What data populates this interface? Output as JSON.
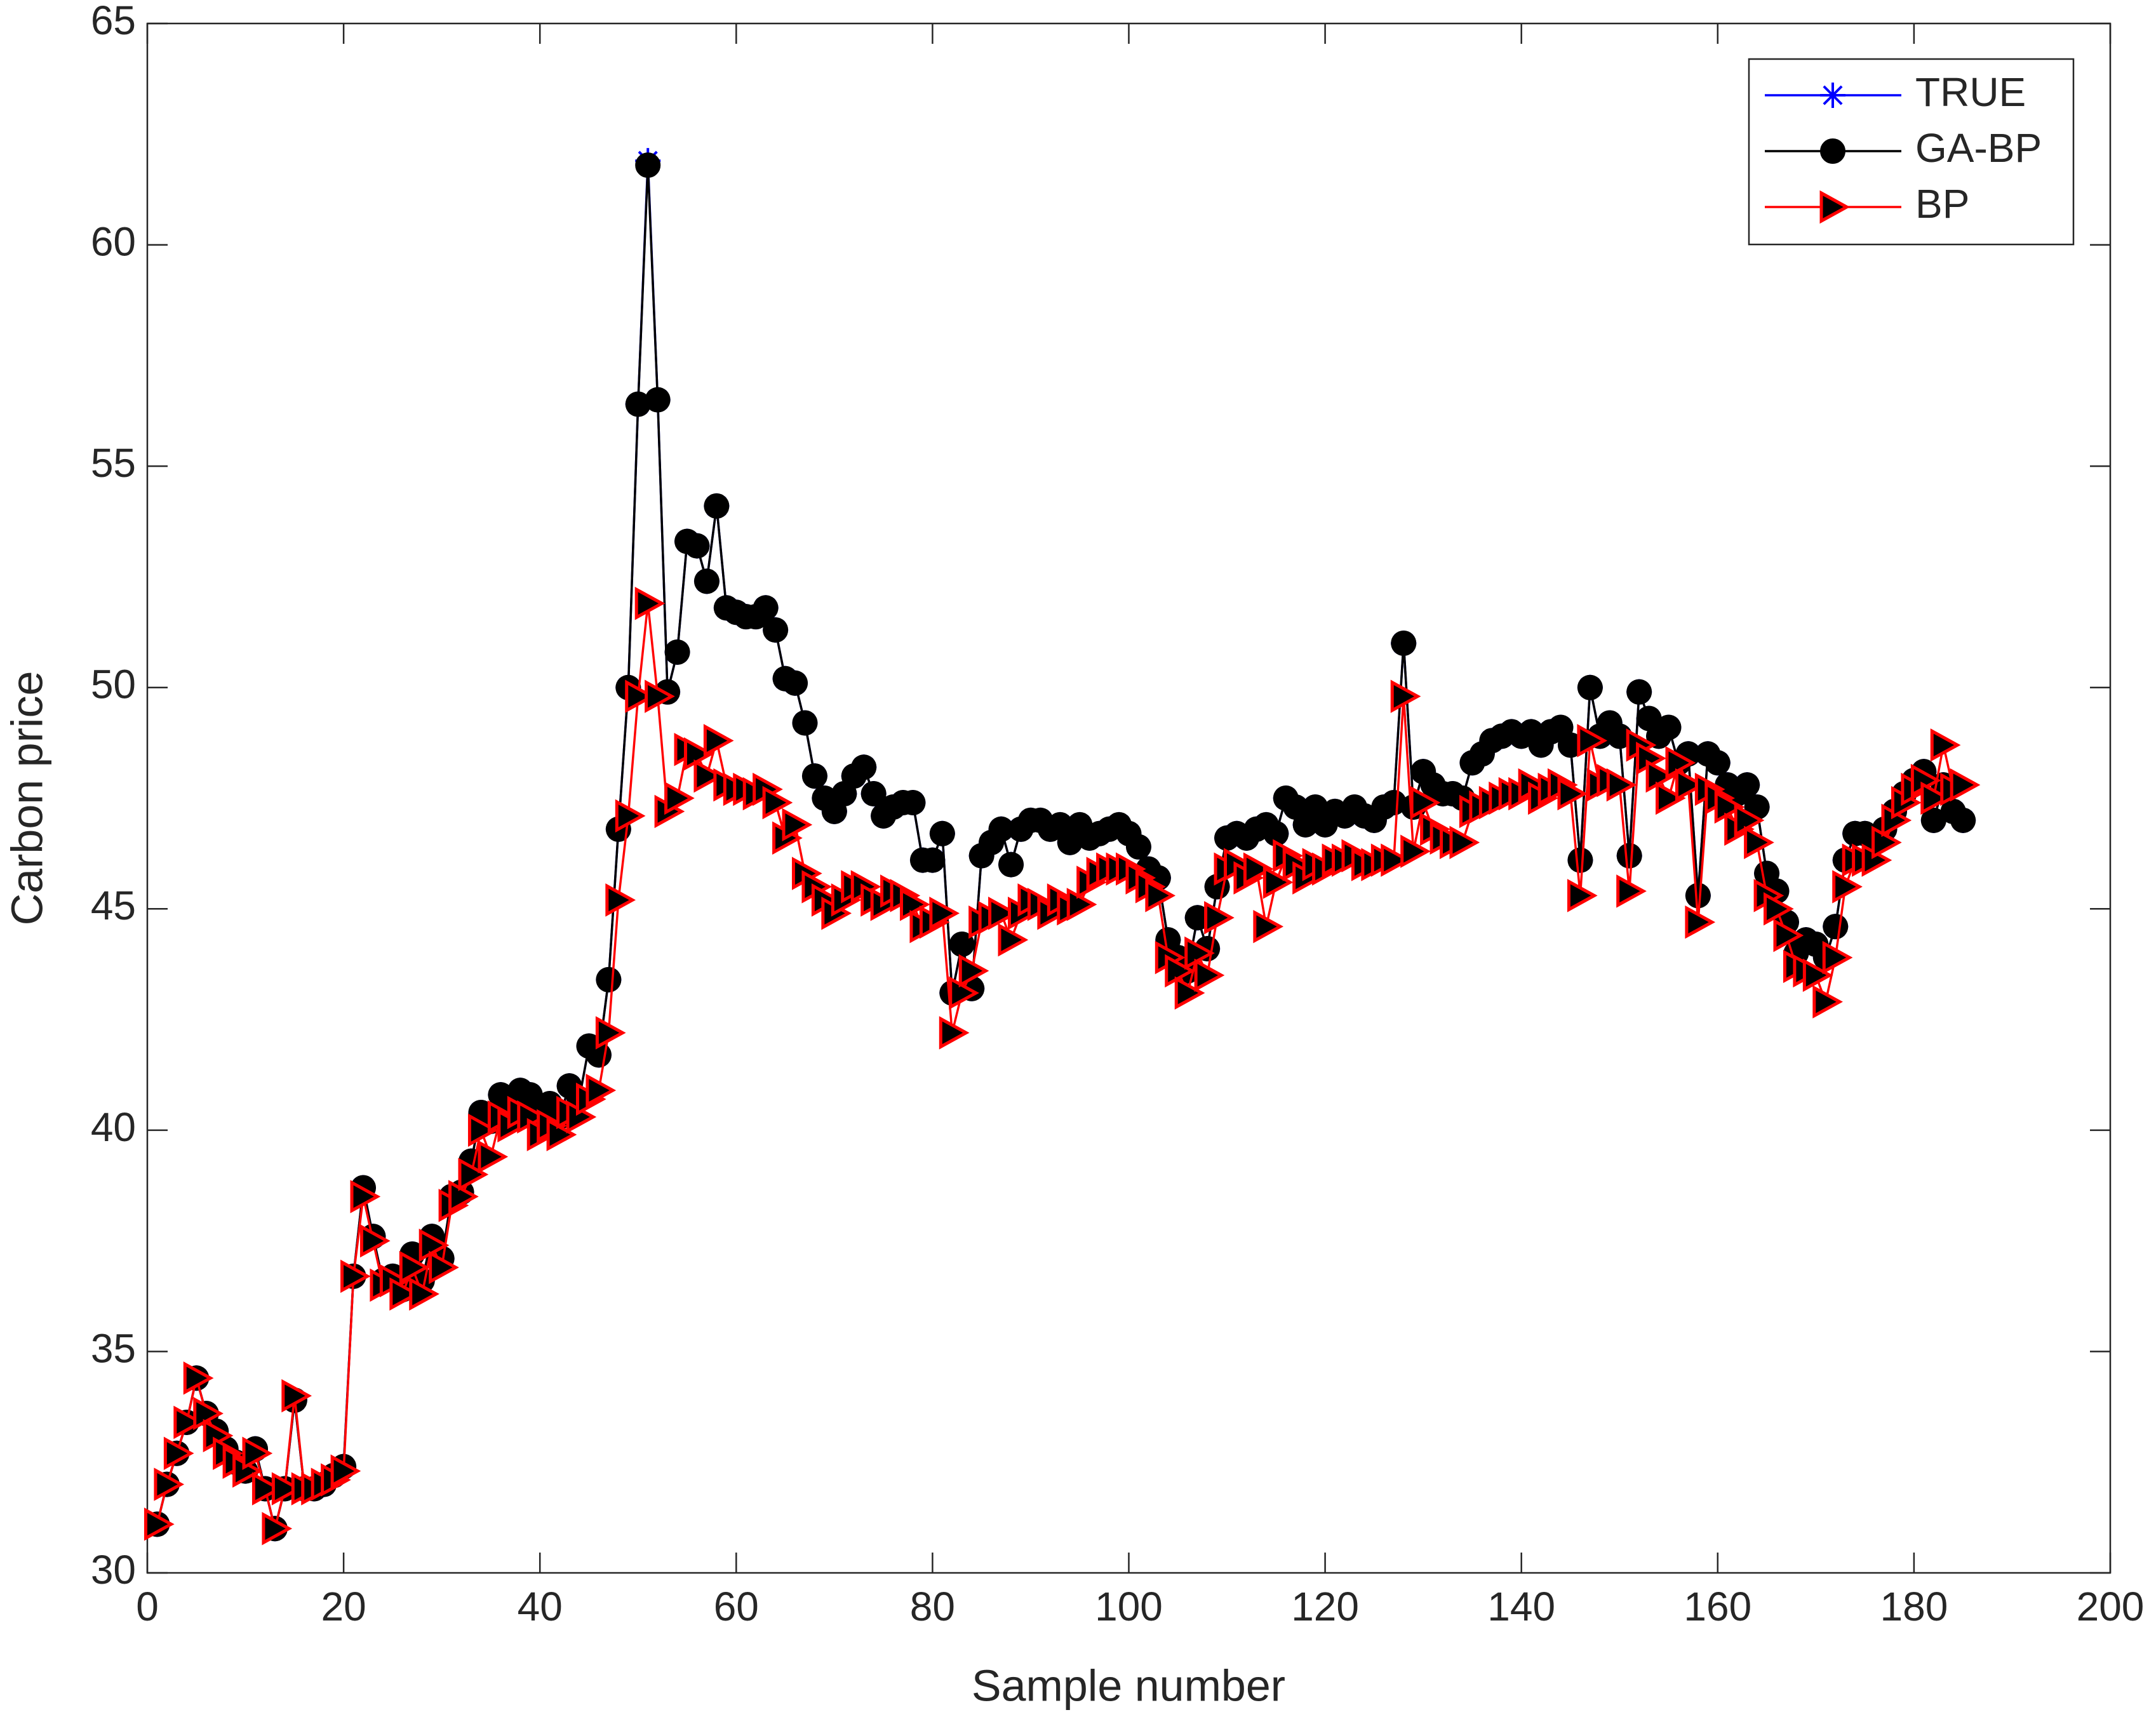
{
  "chart_data": {
    "type": "line",
    "xlabel": "Sample number",
    "ylabel": "Carbon price",
    "xlim": [
      0,
      200
    ],
    "xticks": [
      0,
      20,
      40,
      60,
      80,
      100,
      120,
      140,
      160,
      180,
      200
    ],
    "ylim": [
      30,
      65
    ],
    "yticks": [
      30,
      35,
      40,
      45,
      50,
      55,
      60,
      65
    ],
    "legend": "northeast",
    "x": [
      1,
      2,
      3,
      4,
      5,
      6,
      7,
      8,
      9,
      10,
      11,
      12,
      13,
      14,
      15,
      16,
      17,
      18,
      19,
      20,
      21,
      22,
      23,
      24,
      25,
      26,
      27,
      28,
      29,
      30,
      31,
      32,
      33,
      34,
      35,
      36,
      37,
      38,
      39,
      40,
      41,
      42,
      43,
      44,
      45,
      46,
      47,
      48,
      49,
      50,
      51,
      52,
      53,
      54,
      55,
      56,
      57,
      58,
      59,
      60,
      61,
      62,
      63,
      64,
      65,
      66,
      67,
      68,
      69,
      70,
      71,
      72,
      73,
      74,
      75,
      76,
      77,
      78,
      79,
      80,
      81,
      82,
      83,
      84,
      85,
      86,
      87,
      88,
      89,
      90,
      91,
      92,
      93,
      94,
      95,
      96,
      97,
      98,
      99,
      100,
      101,
      102,
      103,
      104,
      105,
      106,
      107,
      108,
      109,
      110,
      111,
      112,
      113,
      114,
      115,
      116,
      117,
      118,
      119,
      120,
      121,
      122,
      123,
      124,
      125,
      126,
      127,
      128,
      129,
      130,
      131,
      132,
      133,
      134,
      135,
      136,
      137,
      138,
      139,
      140,
      141,
      142,
      143,
      144,
      145,
      146,
      147,
      148,
      149,
      150,
      151,
      152,
      153,
      154,
      155,
      156,
      157,
      158,
      159,
      160,
      161,
      162,
      163,
      164,
      165,
      166,
      167,
      168,
      169,
      170,
      171,
      172,
      173,
      174,
      175,
      176,
      177,
      178,
      179,
      180,
      181,
      182,
      183,
      184,
      185
    ],
    "series": [
      {
        "name": "TRUE",
        "color": "#0000ff",
        "marker": "asterisk",
        "values": [
          31.1,
          32.0,
          32.7,
          33.4,
          34.4,
          33.6,
          33.2,
          32.8,
          32.5,
          32.3,
          32.8,
          31.9,
          31.0,
          31.9,
          33.9,
          31.9,
          31.9,
          32.0,
          32.2,
          32.4,
          36.7,
          38.7,
          37.6,
          36.6,
          36.7,
          36.4,
          37.2,
          36.6,
          37.6,
          37.1,
          38.5,
          38.6,
          39.3,
          40.4,
          40.2,
          40.8,
          40.6,
          40.9,
          40.8,
          40.4,
          40.6,
          40.3,
          41.0,
          40.7,
          41.9,
          41.7,
          43.4,
          46.8,
          50.0,
          56.4,
          61.9,
          56.5,
          49.9,
          50.8,
          53.3,
          53.2,
          52.4,
          54.1,
          51.8,
          51.7,
          51.6,
          51.6,
          51.8,
          51.3,
          50.2,
          50.1,
          49.2,
          48.0,
          47.5,
          47.2,
          47.6,
          48.0,
          48.2,
          47.6,
          47.1,
          47.3,
          47.4,
          47.4,
          46.1,
          46.1,
          46.7,
          43.1,
          44.2,
          43.2,
          46.2,
          46.5,
          46.8,
          46.0,
          46.8,
          47.0,
          47.0,
          46.8,
          46.9,
          46.5,
          46.9,
          46.6,
          46.7,
          46.8,
          46.9,
          46.7,
          46.4,
          45.9,
          45.7,
          44.3,
          43.9,
          43.6,
          44.8,
          44.1,
          45.5,
          46.6,
          46.7,
          46.6,
          46.8,
          46.9,
          46.7,
          47.5,
          47.3,
          46.9,
          47.3,
          46.9,
          47.2,
          47.1,
          47.3,
          47.1,
          47.0,
          47.3,
          47.4,
          51.0,
          47.3,
          48.1,
          47.8,
          47.6,
          47.6,
          47.5,
          48.3,
          48.5,
          48.8,
          48.9,
          49.0,
          48.9,
          49.0,
          48.7,
          49.0,
          49.1,
          48.7,
          46.1,
          50.0,
          48.9,
          49.2,
          48.9,
          46.2,
          49.9,
          49.3,
          48.9,
          49.1,
          48.3,
          48.5,
          45.3,
          48.5,
          48.3,
          47.8,
          47.6,
          47.8,
          47.3,
          45.8,
          45.4,
          44.7,
          44.0,
          44.3,
          44.2,
          43.9,
          44.6,
          46.1,
          46.7,
          46.7,
          46.5,
          46.8,
          47.2,
          47.6,
          47.9,
          48.1,
          47.0,
          47.8,
          47.2,
          47.0
        ]
      },
      {
        "name": "GA-BP",
        "color": "#000000",
        "marker": "circle",
        "values": [
          31.1,
          32.0,
          32.7,
          33.4,
          34.4,
          33.6,
          33.2,
          32.8,
          32.5,
          32.3,
          32.8,
          31.9,
          31.0,
          31.9,
          33.9,
          31.9,
          31.9,
          32.0,
          32.2,
          32.4,
          36.7,
          38.7,
          37.6,
          36.6,
          36.7,
          36.4,
          37.2,
          36.6,
          37.6,
          37.1,
          38.5,
          38.6,
          39.3,
          40.4,
          40.2,
          40.8,
          40.6,
          40.9,
          40.8,
          40.4,
          40.6,
          40.3,
          41.0,
          40.7,
          41.9,
          41.7,
          43.4,
          46.8,
          50.0,
          56.4,
          61.8,
          56.5,
          49.9,
          50.8,
          53.3,
          53.2,
          52.4,
          54.1,
          51.8,
          51.7,
          51.6,
          51.6,
          51.8,
          51.3,
          50.2,
          50.1,
          49.2,
          48.0,
          47.5,
          47.2,
          47.6,
          48.0,
          48.2,
          47.6,
          47.1,
          47.3,
          47.4,
          47.4,
          46.1,
          46.1,
          46.7,
          43.1,
          44.2,
          43.2,
          46.2,
          46.5,
          46.8,
          46.0,
          46.8,
          47.0,
          47.0,
          46.8,
          46.9,
          46.5,
          46.9,
          46.6,
          46.7,
          46.8,
          46.9,
          46.7,
          46.4,
          45.9,
          45.7,
          44.3,
          43.9,
          43.6,
          44.8,
          44.1,
          45.5,
          46.6,
          46.7,
          46.6,
          46.8,
          46.9,
          46.7,
          47.5,
          47.3,
          46.9,
          47.3,
          46.9,
          47.2,
          47.1,
          47.3,
          47.1,
          47.0,
          47.3,
          47.4,
          51.0,
          47.3,
          48.1,
          47.8,
          47.6,
          47.6,
          47.5,
          48.3,
          48.5,
          48.8,
          48.9,
          49.0,
          48.9,
          49.0,
          48.7,
          49.0,
          49.1,
          48.7,
          46.1,
          50.0,
          48.9,
          49.2,
          48.9,
          46.2,
          49.9,
          49.3,
          48.9,
          49.1,
          48.3,
          48.5,
          45.3,
          48.5,
          48.3,
          47.8,
          47.6,
          47.8,
          47.3,
          45.8,
          45.4,
          44.7,
          44.0,
          44.3,
          44.2,
          43.9,
          44.6,
          46.1,
          46.7,
          46.7,
          46.5,
          46.8,
          47.2,
          47.6,
          47.9,
          48.1,
          47.0,
          47.8,
          47.2,
          47.0
        ]
      },
      {
        "name": "BP",
        "color": "#ff0000",
        "marker": "triangle-right",
        "values": [
          31.1,
          32.0,
          32.7,
          33.4,
          34.4,
          33.6,
          33.1,
          32.7,
          32.5,
          32.3,
          32.7,
          31.9,
          31.0,
          31.9,
          34.0,
          31.9,
          31.9,
          32.0,
          32.1,
          32.3,
          36.7,
          38.5,
          37.5,
          36.5,
          36.6,
          36.3,
          36.9,
          36.3,
          37.4,
          36.9,
          38.3,
          38.5,
          39.0,
          40.0,
          39.4,
          40.3,
          40.1,
          40.4,
          40.3,
          39.9,
          40.1,
          39.9,
          40.4,
          40.3,
          40.7,
          40.9,
          42.2,
          45.2,
          47.1,
          49.8,
          51.9,
          49.8,
          47.2,
          47.5,
          48.6,
          48.5,
          48.0,
          48.8,
          47.8,
          47.7,
          47.7,
          47.6,
          47.7,
          47.4,
          46.6,
          46.9,
          45.8,
          45.5,
          45.2,
          44.9,
          45.2,
          45.5,
          45.5,
          45.2,
          45.1,
          45.4,
          45.3,
          45.1,
          44.6,
          44.7,
          44.9,
          42.2,
          43.1,
          43.6,
          44.7,
          44.8,
          44.9,
          44.3,
          44.9,
          45.2,
          45.1,
          44.9,
          45.2,
          45.0,
          45.1,
          45.6,
          45.8,
          45.9,
          45.9,
          45.9,
          45.7,
          45.5,
          45.3,
          43.9,
          43.6,
          43.1,
          44.0,
          43.5,
          44.8,
          45.9,
          46.0,
          45.7,
          45.9,
          44.6,
          45.6,
          46.2,
          46.0,
          45.7,
          46.0,
          45.9,
          46.1,
          46.1,
          46.2,
          46.0,
          46.0,
          46.1,
          46.1,
          49.8,
          46.3,
          47.4,
          46.8,
          46.6,
          46.5,
          46.5,
          47.2,
          47.3,
          47.4,
          47.5,
          47.6,
          47.6,
          47.8,
          47.5,
          47.7,
          47.8,
          47.6,
          45.3,
          48.8,
          47.8,
          47.9,
          47.8,
          45.4,
          48.7,
          48.4,
          48.0,
          47.5,
          48.3,
          47.8,
          44.7,
          47.7,
          47.5,
          47.3,
          46.8,
          47.0,
          46.5,
          45.3,
          45.0,
          44.4,
          43.7,
          43.6,
          43.5,
          42.9,
          43.9,
          45.5,
          46.1,
          46.1,
          46.1,
          46.5,
          47.0,
          47.4,
          47.7,
          47.9,
          47.5,
          48.7,
          47.7,
          47.8
        ]
      }
    ]
  }
}
